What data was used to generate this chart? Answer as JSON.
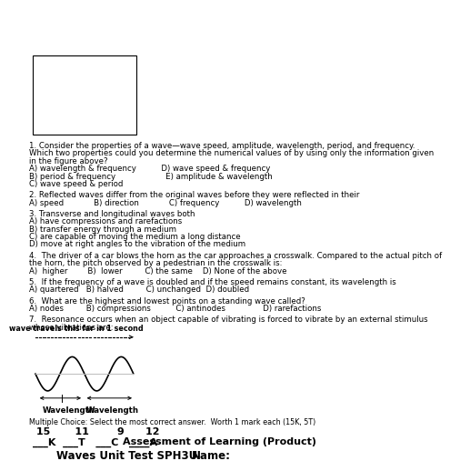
{
  "title1": "Waves Unit Test SPH3U",
  "title2": "Name:",
  "line2b": "Assessment of Learning (Product)",
  "mc_header": "Multiple Choice: Select the most correct answer.  Worth 1 mark each (15K, 5T)",
  "q1": "1. Consider the properties of a wave—wave speed, amplitude, wavelength, period, and frequency.\nWhich two properties could you determine the numerical values of by using only the information given\nin the figure above?\nA) wavelength & frequency          D) wave speed & frequency\nB) period & frequency                    E) amplitude & wavelength\nC) wave speed & period",
  "q2": "2. Reflected waves differ from the original waves before they were reflected in their\nA) speed            B) direction            C) frequency          D) wavelength",
  "q3": "3. Transverse and longitudinal waves both\nA) have compressions and rarefactions\nB) transfer energy through a medium\nC) are capable of moving the medium a long distance\nD) move at right angles to the vibration of the medium",
  "q4": "4.  The driver of a car blows the horn as the car approaches a crosswalk. Compared to the actual pitch of\nthe horn, the pitch observed by a pedestrian in the crosswalk is:\nA)  higher        B)  lower         C) the same    D) None of the above",
  "q5": "5.  If the frequency of a wave is doubled and if the speed remains constant, its wavelength is\nA) quartered   B) halved         C) unchanged  D) doubled",
  "q6": "6.  What are the highest and lowest points on a standing wave called?\nA) nodes         B) compressions          C) antinodes               D) rarefactions",
  "q7": "7.  Resonance occurs when an object capable of vibrating is forced to vibrate by an external stimulus\nwhose vibrations are:",
  "wave_label1": "Wavelength",
  "wave_label2": "Wavelength",
  "wave_bottom_label": "wave travels this far in 1 second",
  "bg_color": "#ffffff",
  "text_color": "#000000"
}
